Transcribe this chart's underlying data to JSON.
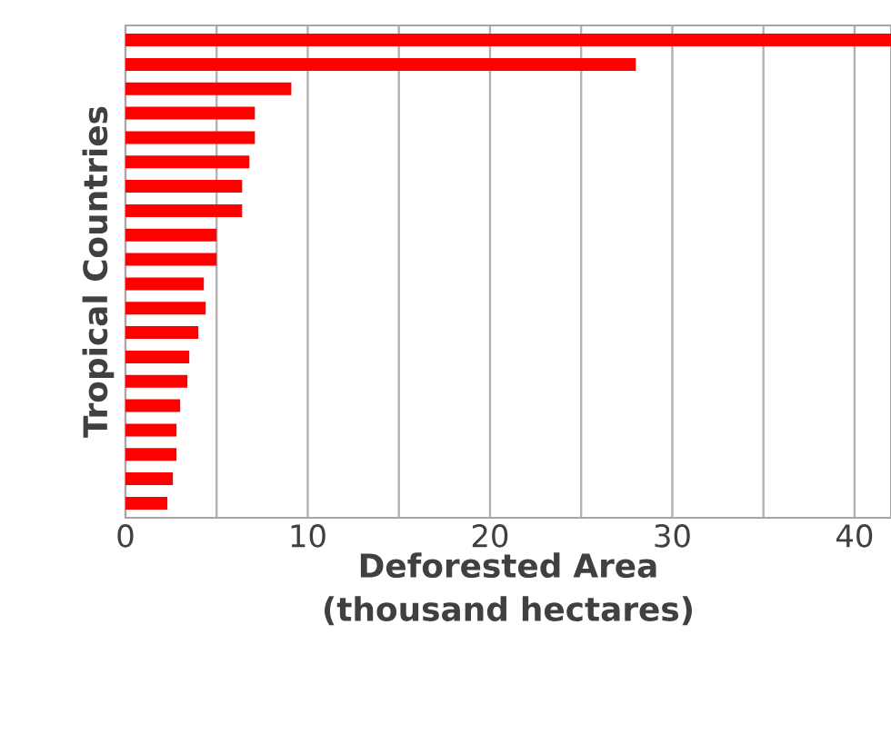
{
  "chart_data": {
    "type": "bar",
    "orientation": "horizontal",
    "ylabel": "Tropical Countries",
    "xlabel": "Deforested Area (thousand hectares)",
    "categories": [
      null,
      null,
      null,
      null,
      null,
      null,
      null,
      null,
      null,
      null,
      null,
      null,
      null,
      null,
      null,
      null,
      null,
      null,
      null,
      null
    ],
    "values": [
      42,
      28.0,
      9.1,
      7.1,
      7.1,
      6.8,
      6.4,
      6.4,
      5.0,
      5.0,
      4.3,
      4.4,
      4.0,
      3.5,
      3.4,
      3.0,
      2.8,
      2.8,
      2.6,
      2.3
    ],
    "color": "#ff0000",
    "xlim": [
      0,
      42
    ],
    "xticks": [
      0,
      10,
      20,
      30,
      40
    ],
    "grid": "x"
  }
}
